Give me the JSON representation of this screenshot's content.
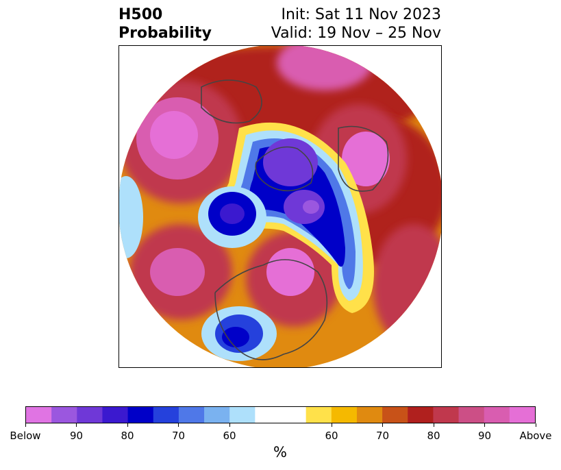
{
  "header": {
    "title_line1": "H500",
    "title_line2": "Probability",
    "init_label": "Init: Sat 11 Nov 2023",
    "valid_label": "Valid: 19 Nov – 25 Nov"
  },
  "map": {
    "projection": "north polar stereographic",
    "region": "Northern Hemisphere"
  },
  "colorbar": {
    "unit_label": "%",
    "colors": [
      "#e074e3",
      "#9b57df",
      "#6f38d7",
      "#3b19cf",
      "#0000c8",
      "#2541dc",
      "#4f78e8",
      "#7ab2f0",
      "#aee0fb",
      "#ffffff",
      "#ffffff",
      "#ffe14a",
      "#f5b900",
      "#e08a10",
      "#c85218",
      "#b0201e",
      "#c0384d",
      "#cc4f86",
      "#d95db0",
      "#e56fd6"
    ],
    "tick_labels": [
      "Below",
      "90",
      "80",
      "70",
      "60",
      "60",
      "70",
      "80",
      "90",
      "Above"
    ]
  },
  "palette": {
    "below_strong": "#e074e3",
    "below_mid": "#0000c8",
    "below_light": "#aee0fb",
    "neutral": "#ffffff",
    "above_light": "#ffe14a",
    "above_mid": "#b0201e",
    "above_strong": "#e56fd6",
    "coastline": "#444444"
  }
}
